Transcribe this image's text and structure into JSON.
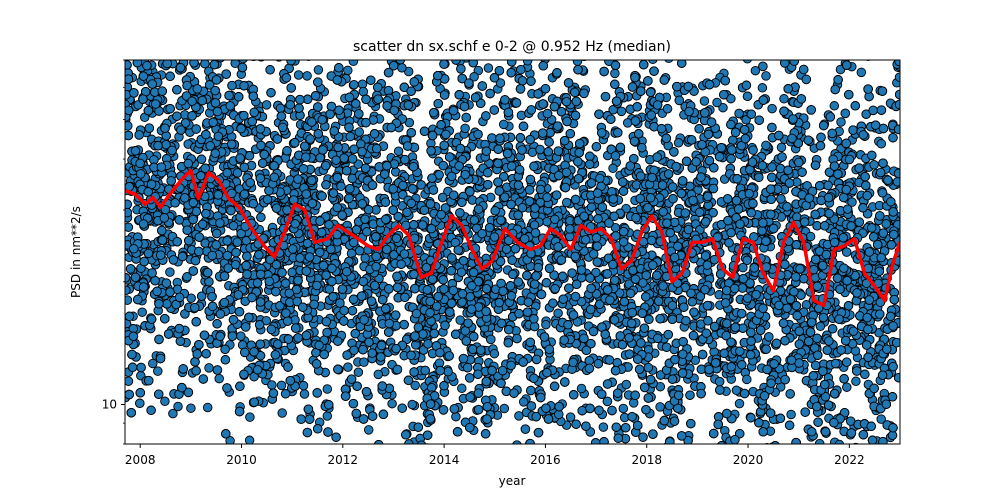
{
  "chart_data": {
    "type": "scatter",
    "title": "scatter dn sx.schf e 0-2 @ 0.952 Hz (median)",
    "xlabel": "year",
    "ylabel": "PSD in nm**2/s",
    "xlim": [
      2007.7,
      2023.0
    ],
    "ylim": [
      8.0,
      70.0
    ],
    "yscale": "log",
    "x_ticks": [
      2008,
      2010,
      2012,
      2014,
      2016,
      2018,
      2020,
      2022
    ],
    "x_tick_labels": [
      "2008",
      "2010",
      "2012",
      "2014",
      "2016",
      "2018",
      "2020",
      "2022"
    ],
    "y_ticks": [
      10
    ],
    "y_tick_labels": [
      "10"
    ],
    "grid": false,
    "series": [
      {
        "kind": "scatter",
        "color": "#1f77b4",
        "edgecolor": "#000000",
        "points_per_year": 700,
        "spread_range": [
          8.0,
          70.0
        ]
      },
      {
        "kind": "line",
        "color": "#ff0000",
        "x": [
          2007.7,
          2007.9,
          2008.1,
          2008.25,
          2008.4,
          2008.6,
          2008.85,
          2009.0,
          2009.15,
          2009.35,
          2009.55,
          2009.75,
          2009.95,
          2010.2,
          2010.45,
          2010.65,
          2010.85,
          2011.05,
          2011.25,
          2011.45,
          2011.7,
          2011.9,
          2012.1,
          2012.3,
          2012.5,
          2012.7,
          2012.9,
          2013.1,
          2013.3,
          2013.55,
          2013.75,
          2013.95,
          2014.15,
          2014.35,
          2014.55,
          2014.75,
          2014.95,
          2015.2,
          2015.45,
          2015.7,
          2015.9,
          2016.1,
          2016.3,
          2016.5,
          2016.7,
          2016.9,
          2017.1,
          2017.3,
          2017.5,
          2017.7,
          2017.9,
          2018.1,
          2018.3,
          2018.5,
          2018.7,
          2018.9,
          2019.1,
          2019.3,
          2019.5,
          2019.7,
          2019.9,
          2020.1,
          2020.3,
          2020.5,
          2020.7,
          2020.9,
          2021.1,
          2021.3,
          2021.5,
          2021.7,
          2021.9,
          2022.1,
          2022.3,
          2022.5,
          2022.7,
          2022.85,
          2023.0
        ],
        "y": [
          33.5,
          32.8,
          31.0,
          32.2,
          30.5,
          33.0,
          36.0,
          37.5,
          32.0,
          37.0,
          35.5,
          32.0,
          30.5,
          27.0,
          24.5,
          23.0,
          26.5,
          31.0,
          30.0,
          25.0,
          25.5,
          27.5,
          26.5,
          25.5,
          24.5,
          24.0,
          26.0,
          27.5,
          26.0,
          20.5,
          21.0,
          25.0,
          29.0,
          27.5,
          24.0,
          21.5,
          22.5,
          27.0,
          25.0,
          24.0,
          24.5,
          27.0,
          26.0,
          24.0,
          27.5,
          26.5,
          27.0,
          25.5,
          21.5,
          22.5,
          26.5,
          29.0,
          26.5,
          20.0,
          21.0,
          25.0,
          25.0,
          25.5,
          21.5,
          20.5,
          25.5,
          25.0,
          21.0,
          19.0,
          25.0,
          28.0,
          25.0,
          18.0,
          17.5,
          24.0,
          24.5,
          25.5,
          21.0,
          19.5,
          18.0,
          22.0,
          25.0
        ]
      }
    ]
  }
}
